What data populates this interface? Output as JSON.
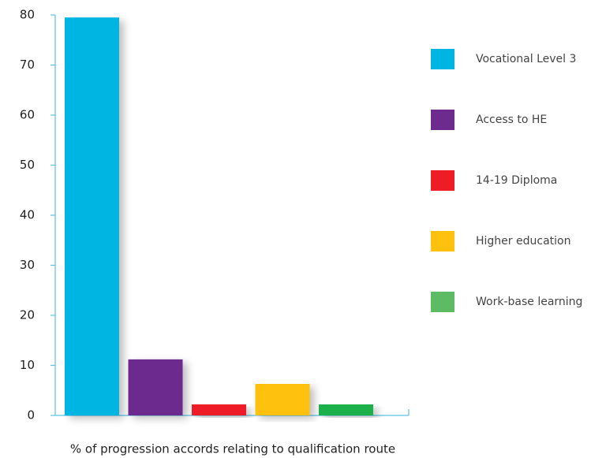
{
  "chart_data": {
    "type": "bar",
    "x_label": "% of progression accords relating to qualification route",
    "categories": [
      "Vocational Level 3",
      "Access to HE",
      "14-19 Diploma",
      "Higher education",
      "Work-base learning"
    ],
    "values": [
      79.5,
      11.2,
      2.2,
      6.3,
      2.2
    ],
    "colors": [
      "#00b5e2",
      "#6d2b8e",
      "#ee1c25",
      "#fec10e",
      "#1db04b"
    ],
    "legend_colors": [
      "#00b5e2",
      "#6d2b8e",
      "#ee1c25",
      "#fec10e",
      "#5dbb63"
    ],
    "ylim": [
      0,
      80
    ],
    "yticks": [
      0,
      10,
      20,
      30,
      40,
      50,
      60,
      70,
      80
    ],
    "legend": "right"
  }
}
